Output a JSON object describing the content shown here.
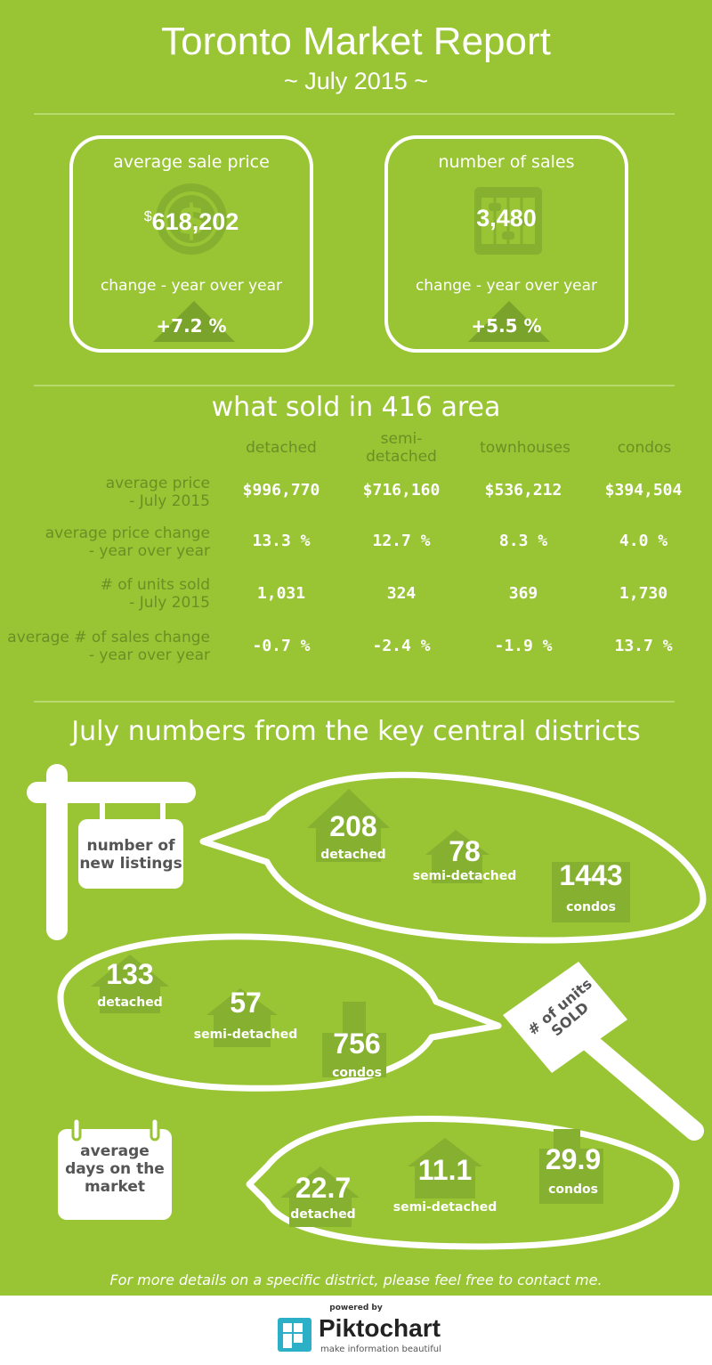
{
  "header": {
    "title": "Toronto Market Report",
    "subtitle": "~ July 2015 ~"
  },
  "cards": [
    {
      "title": "average sale price",
      "value_prefix": "$",
      "value": "618,202",
      "change_label": "change - year over year",
      "change": "+7.2 %",
      "icon": "dollar-coin-icon"
    },
    {
      "title": "number of sales",
      "value": "3,480",
      "change_label": "change - year over year",
      "change": "+5.5 %",
      "icon": "abacus-icon"
    }
  ],
  "table": {
    "title": "what sold in 416 area",
    "columns": [
      "detached",
      "semi-\ndetached",
      "townhouses",
      "condos"
    ],
    "rows": [
      {
        "label": "average price\n- July 2015",
        "values": [
          "$996,770",
          "$716,160",
          "$536,212",
          "$394,504"
        ]
      },
      {
        "label": "average price change\n- year over year",
        "values": [
          "13.3 %",
          "12.7 %",
          "8.3 %",
          "4.0 %"
        ]
      },
      {
        "label": "# of units sold\n- July 2015",
        "values": [
          "1,031",
          "324",
          "369",
          "1,730"
        ]
      },
      {
        "label": "average # of sales change\n- year over year",
        "values": [
          "-0.7 %",
          "-2.4 %",
          "-1.9 %",
          "13.7 %"
        ]
      }
    ]
  },
  "districts": {
    "title": "July numbers from the key central districts",
    "new_listings": {
      "sign": "number of\nnew listings",
      "detached": {
        "value": "208",
        "label": "detached"
      },
      "semi": {
        "value": "78",
        "label": "semi-detached"
      },
      "condos": {
        "value": "1443",
        "label": "condos"
      }
    },
    "units_sold": {
      "sign": "# of units\nSOLD",
      "detached": {
        "value": "133",
        "label": "detached"
      },
      "semi": {
        "value": "57",
        "label": "semi-detached"
      },
      "condos": {
        "value": "756",
        "label": "condos"
      }
    },
    "days_on_market": {
      "sign": "average\ndays on the\nmarket",
      "detached": {
        "value": "22.7",
        "label": "detached"
      },
      "semi": {
        "value": "11.1",
        "label": "semi-detached"
      },
      "condos": {
        "value": "29.9",
        "label": "condos"
      }
    }
  },
  "footer": {
    "note": "For more details on a specific district, please feel free to contact me.",
    "powered_by": "powered by",
    "brand": "Piktochart",
    "tagline": "make information beautiful"
  },
  "colors": {
    "background": "#99c535",
    "accent_dark": "#6b8f24",
    "icon": "#86b030",
    "text": "#ffffff"
  }
}
